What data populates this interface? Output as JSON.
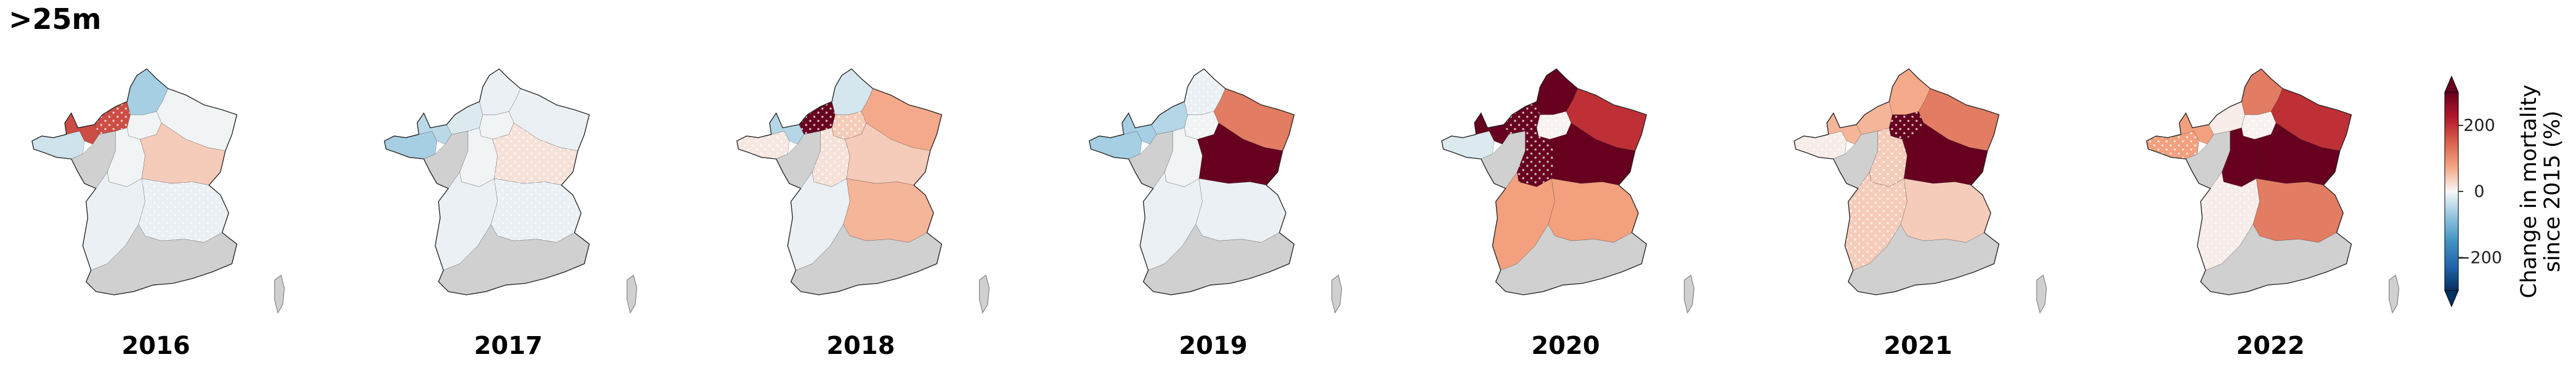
{
  "title": ">25m",
  "colors": {
    "na": "#d0d0d0",
    "outline": "#222222",
    "cmap_low": "#053061",
    "cmap_mid": "#f7f7f7",
    "cmap_high": "#67001f"
  },
  "chart_data": {
    "type": "choropleth",
    "title": ">25m",
    "panels": [
      "2016",
      "2017",
      "2018",
      "2019",
      "2020",
      "2021",
      "2022"
    ],
    "regions": [
      "Bretagne",
      "Normandie-Ouest",
      "Normandie-Est",
      "Hauts-de-France",
      "Ile-de-France",
      "Grand Est",
      "Pays de la Loire",
      "Centre-Val de Loire",
      "Bourgogne-Franche-Comte",
      "Nouvelle-Aquitaine",
      "Auvergne-Rhone-Alpes",
      "Sud",
      "Corse"
    ],
    "values": {
      "2016": [
        -30,
        170,
        170,
        -60,
        -5,
        -5,
        null,
        -5,
        40,
        -10,
        -10,
        null,
        null
      ],
      "2017": [
        -60,
        -45,
        -20,
        -10,
        -5,
        -10,
        null,
        -5,
        20,
        -10,
        -10,
        null,
        null
      ],
      "2018": [
        15,
        -50,
        300,
        -25,
        40,
        70,
        null,
        20,
        40,
        -10,
        60,
        null,
        null
      ],
      "2019": [
        -60,
        -60,
        -50,
        -10,
        -5,
        120,
        null,
        -5,
        300,
        -10,
        -10,
        null,
        null
      ],
      "2020": [
        -20,
        300,
        300,
        300,
        5,
        200,
        null,
        300,
        300,
        80,
        80,
        null,
        null
      ],
      "2021": [
        10,
        60,
        60,
        70,
        300,
        120,
        null,
        40,
        300,
        40,
        40,
        null,
        null
      ],
      "2022": [
        80,
        80,
        10,
        120,
        5,
        200,
        null,
        300,
        300,
        10,
        120,
        null,
        null
      ]
    },
    "hatched": {
      "2016": [
        "Normandie-Est",
        "Auvergne-Rhone-Alpes"
      ],
      "2017": [
        "Auvergne-Rhone-Alpes",
        "Bourgogne-Franche-Comte"
      ],
      "2018": [
        "Normandie-Est",
        "Centre-Val de Loire",
        "Bretagne",
        "Ile-de-France"
      ],
      "2019": [
        "Ile-de-France",
        "Hauts-de-France"
      ],
      "2020": [
        "Normandie-Est",
        "Centre-Val de Loire",
        "Ile-de-France"
      ],
      "2021": [
        "Centre-Val de Loire",
        "Bretagne",
        "Nouvelle-Aquitaine",
        "Ile-de-France"
      ],
      "2022": [
        "Bretagne",
        "Nouvelle-Aquitaine",
        "Ile-de-France"
      ]
    },
    "colorbar": {
      "label": "Change in mortality\nsince 2015 (%)",
      "vmin": -300,
      "vmax": 300,
      "ticks": [
        -200,
        0,
        200
      ],
      "tick_labels": [
        "−200",
        "0",
        "200"
      ],
      "extend": "both"
    }
  }
}
